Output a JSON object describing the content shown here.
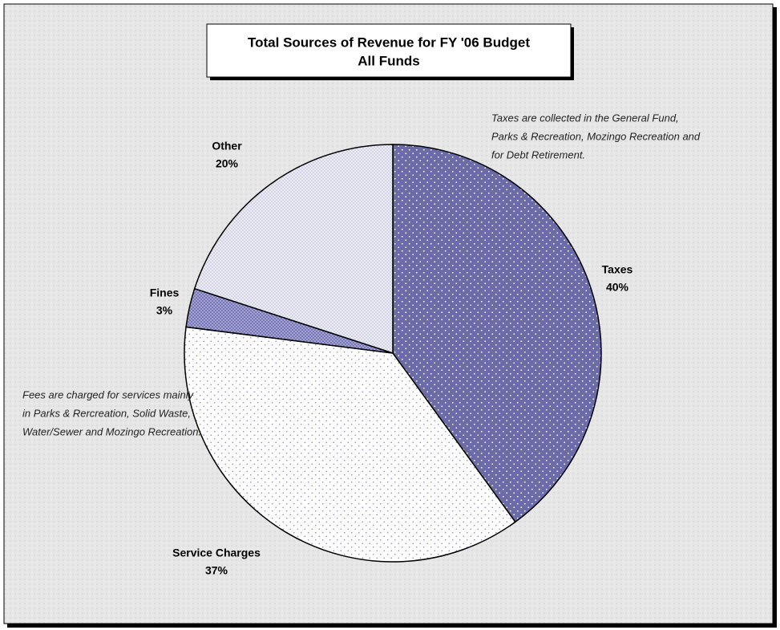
{
  "chart_data": {
    "type": "pie",
    "title": "Total Sources of Revenue for FY '06 Budget",
    "subtitle": "All Funds",
    "categories": [
      "Taxes",
      "Service Charges",
      "Fines",
      "Other"
    ],
    "values": [
      40,
      37,
      3,
      20
    ],
    "value_labels": [
      "40%",
      "37%",
      "3%",
      "20%"
    ],
    "colors": [
      "#6b6ba8",
      "#ffffff",
      "#7878b8",
      "#ececf4"
    ],
    "annotations": [
      {
        "lines": [
          "Taxes are collected in the General Fund,",
          "Parks & Recreation, Mozingo Recreation and",
          "for Debt Retirement."
        ]
      },
      {
        "lines": [
          "Fees are charged for services mainly",
          "in Parks & Rercreation, Solid Waste,",
          "Water/Sewer and Mozingo Recreation."
        ]
      }
    ]
  }
}
